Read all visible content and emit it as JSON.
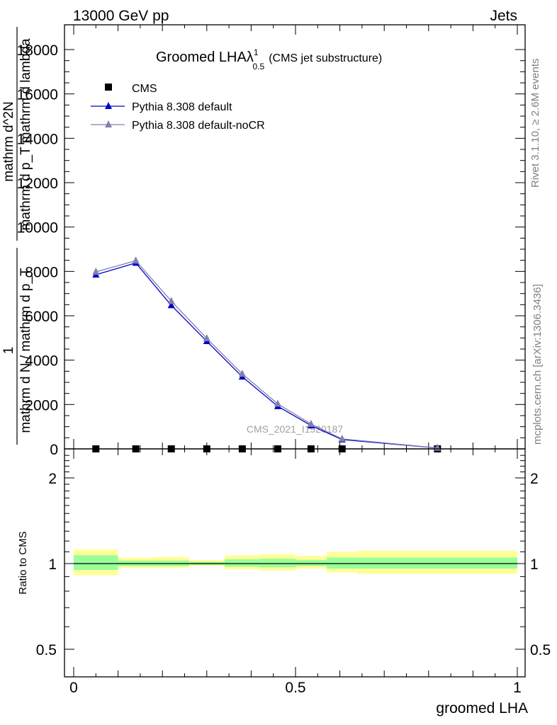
{
  "header": {
    "energy_label": "13000 GeV pp",
    "process_label": "Jets"
  },
  "side_labels": {
    "rivet": "Rivet 3.1.10, ≥ 2.6M events",
    "mcplots": "mcplots.cern.ch [arXiv:1306.3436]"
  },
  "analysis_label": "CMS_2021_I1920187",
  "chart_data": [
    {
      "type": "line",
      "title": "Groomed LHAλ",
      "title_sup": "1",
      "title_sub": "0.5",
      "subtitle": "(CMS jet substructure)",
      "ylabel_lines": [
        "1",
        "mathrm d N / mathrm d p_T",
        "mathrm d^2N",
        "mathrm d p_T mathrm d lambda"
      ],
      "xlabel": "groomed LHA",
      "xlim": [
        0,
        1
      ],
      "ylim": [
        0,
        18000
      ],
      "yticks": [
        0,
        2000,
        4000,
        6000,
        8000,
        10000,
        12000,
        14000,
        16000,
        18000
      ],
      "ytick_labels": [
        "0",
        "2000",
        "4000",
        "6000",
        "8000",
        "10000",
        "12000",
        "14000",
        "16000",
        "18000"
      ],
      "legend_position": "top-left",
      "series": [
        {
          "name": "CMS",
          "color": "#000000",
          "marker": "square",
          "x": [
            0.05,
            0.14,
            0.22,
            0.3,
            0.38,
            0.46,
            0.535,
            0.605,
            0.82
          ],
          "y": [
            0,
            0,
            0,
            0,
            0,
            0,
            0,
            0,
            0
          ]
        },
        {
          "name": "Pythia 8.308 default",
          "color": "#0000cc",
          "marker": "triangle",
          "x": [
            0.05,
            0.14,
            0.22,
            0.3,
            0.38,
            0.46,
            0.535,
            0.605,
            0.82
          ],
          "y": [
            7850,
            8380,
            6470,
            4850,
            3250,
            1920,
            1050,
            420,
            40
          ]
        },
        {
          "name": "Pythia 8.308 default-noCR",
          "color": "#8080b0",
          "marker": "triangle",
          "x": [
            0.05,
            0.14,
            0.22,
            0.3,
            0.38,
            0.46,
            0.535,
            0.605,
            0.82
          ],
          "y": [
            7980,
            8480,
            6660,
            4980,
            3380,
            2030,
            1120,
            450,
            45
          ]
        }
      ]
    },
    {
      "type": "area",
      "ylabel": "Ratio to CMS",
      "xlabel": "groomed LHA",
      "xlim": [
        0,
        1
      ],
      "ylim": [
        0.4,
        2.4
      ],
      "log_y": true,
      "yticks": [
        0.5,
        1,
        2
      ],
      "ytick_labels": [
        "0.5",
        "1",
        "2"
      ],
      "xticks": [
        0,
        0.5,
        1
      ],
      "xtick_labels": [
        "0",
        "0.5",
        "1"
      ],
      "reference_line": 1,
      "band_colors": {
        "outer": "#ffff99",
        "inner": "#99ff99"
      },
      "bins": [
        {
          "x0": 0.0,
          "x1": 0.1,
          "outer_lo": 0.91,
          "outer_hi": 1.12,
          "inner_lo": 0.95,
          "inner_hi": 1.07
        },
        {
          "x0": 0.1,
          "x1": 0.18,
          "outer_lo": 0.965,
          "outer_hi": 1.05,
          "inner_lo": 0.98,
          "inner_hi": 1.025
        },
        {
          "x0": 0.18,
          "x1": 0.26,
          "outer_lo": 0.965,
          "outer_hi": 1.055,
          "inner_lo": 0.98,
          "inner_hi": 1.025
        },
        {
          "x0": 0.26,
          "x1": 0.34,
          "outer_lo": 0.98,
          "outer_hi": 1.03,
          "inner_lo": 0.99,
          "inner_hi": 1.015
        },
        {
          "x0": 0.34,
          "x1": 0.42,
          "outer_lo": 0.955,
          "outer_hi": 1.07,
          "inner_lo": 0.975,
          "inner_hi": 1.035
        },
        {
          "x0": 0.42,
          "x1": 0.5,
          "outer_lo": 0.945,
          "outer_hi": 1.08,
          "inner_lo": 0.97,
          "inner_hi": 1.04
        },
        {
          "x0": 0.5,
          "x1": 0.57,
          "outer_lo": 0.96,
          "outer_hi": 1.065,
          "inner_lo": 0.98,
          "inner_hi": 1.03
        },
        {
          "x0": 0.57,
          "x1": 0.64,
          "outer_lo": 0.93,
          "outer_hi": 1.1,
          "inner_lo": 0.96,
          "inner_hi": 1.05
        },
        {
          "x0": 0.64,
          "x1": 1.0,
          "outer_lo": 0.92,
          "outer_hi": 1.11,
          "inner_lo": 0.96,
          "inner_hi": 1.05
        }
      ]
    }
  ]
}
